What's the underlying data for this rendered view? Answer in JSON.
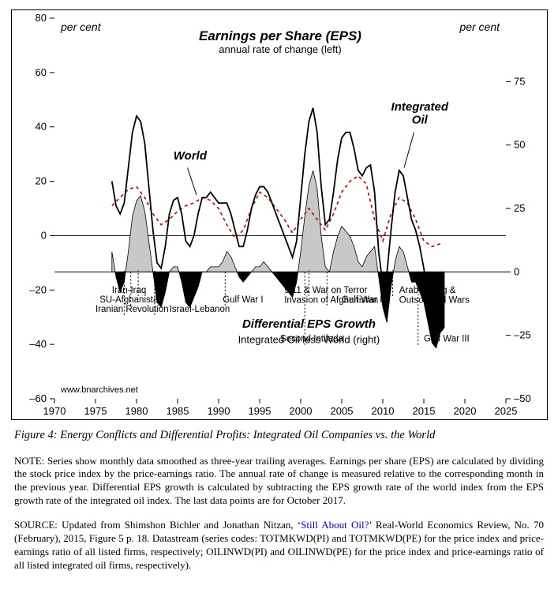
{
  "figure": {
    "caption": "Figure 4: Energy Conflicts and Differential Profits: Integrated Oil Companies vs. the World",
    "note_label": "NOTE:",
    "note_text": " Series show monthly data smoothed as three-year trailing averages. Earnings per share (EPS) are calculated by dividing the stock price index by the price-earnings ratio. The annual rate of change is measured relative to the corresponding month in the previous year. Differential EPS growth is calculated by subtracting the EPS growth rate of the world index from the EPS growth rate of the integrated oil index. The last data points are for October 2017.",
    "source_label": "SOURCE:",
    "source_pre": " Updated from Shimshon Bichler and Jonathan Nitzan, ‘",
    "source_link": "Still About Oil?",
    "source_post": "’ Real-World Economics Review, No. 70 (February), 2015, Figure 5 p. 18. Datastream (series codes: TOTMKWD(PI) and TOTMKWD(PE) for the price index and price-earnings ratio of all listed firms, respectively; OILINWD(PI) and OILINWD(PE) for the price index and price-earnings ratio of all listed integrated oil firms, respectively)."
  },
  "chart": {
    "background_color": "#ffffff",
    "border_color": "#000000",
    "xlim": [
      1970,
      2025
    ],
    "xtick_step": 5,
    "left_axis": {
      "ylim": [
        -60,
        80
      ],
      "ytick_step": 20,
      "unit": "per cent"
    },
    "right_axis": {
      "ylim": [
        -50,
        100
      ],
      "ytick_step": 25,
      "unit": "per cent",
      "visible_range": [
        -50,
        75
      ]
    },
    "zero_line_color": "#000000",
    "titles": {
      "main": "Earnings per Share (EPS)",
      "sub": "annual rate of change (left)",
      "diff_main": "Differential EPS Growth",
      "diff_sub": "Integrated Oil less World (right)"
    },
    "labels": {
      "world": "World",
      "integrated": "Integrated\nOil",
      "watermark": "www.bnarchives.net"
    },
    "series": {
      "world": {
        "color": "#c00000",
        "dash": "4,4",
        "width": 1.6,
        "points": [
          [
            1977,
            11
          ],
          [
            1978,
            14
          ],
          [
            1979,
            17
          ],
          [
            1980,
            18
          ],
          [
            1981,
            14
          ],
          [
            1982,
            8
          ],
          [
            1983,
            4
          ],
          [
            1984,
            6
          ],
          [
            1985,
            9
          ],
          [
            1986,
            11
          ],
          [
            1987,
            12
          ],
          [
            1988,
            14
          ],
          [
            1989,
            13
          ],
          [
            1990,
            10
          ],
          [
            1991,
            4
          ],
          [
            1992,
            -1
          ],
          [
            1993,
            2
          ],
          [
            1994,
            10
          ],
          [
            1995,
            16
          ],
          [
            1996,
            14
          ],
          [
            1997,
            10
          ],
          [
            1998,
            6
          ],
          [
            1999,
            1
          ],
          [
            2000,
            6
          ],
          [
            2001,
            10
          ],
          [
            2002,
            6
          ],
          [
            2003,
            2
          ],
          [
            2004,
            8
          ],
          [
            2005,
            16
          ],
          [
            2006,
            20
          ],
          [
            2007,
            22
          ],
          [
            2008,
            19
          ],
          [
            2009,
            6
          ],
          [
            2010,
            -2
          ],
          [
            2011,
            8
          ],
          [
            2012,
            14
          ],
          [
            2013,
            12
          ],
          [
            2014,
            6
          ],
          [
            2015,
            -2
          ],
          [
            2016,
            -4
          ],
          [
            2017,
            -3
          ]
        ]
      },
      "integrated_oil": {
        "color": "#000000",
        "width": 1.8,
        "points": [
          [
            1977,
            20
          ],
          [
            1977.5,
            11
          ],
          [
            1978,
            8
          ],
          [
            1978.5,
            12
          ],
          [
            1979,
            25
          ],
          [
            1979.5,
            38
          ],
          [
            1980,
            44
          ],
          [
            1980.5,
            42
          ],
          [
            1981,
            34
          ],
          [
            1981.5,
            18
          ],
          [
            1982,
            2
          ],
          [
            1982.5,
            -10
          ],
          [
            1983,
            -12
          ],
          [
            1983.5,
            -4
          ],
          [
            1984,
            8
          ],
          [
            1984.5,
            13
          ],
          [
            1985,
            14
          ],
          [
            1985.5,
            8
          ],
          [
            1986,
            -2
          ],
          [
            1986.5,
            -4
          ],
          [
            1987,
            0
          ],
          [
            1987.5,
            8
          ],
          [
            1988,
            14
          ],
          [
            1988.5,
            14
          ],
          [
            1989,
            16
          ],
          [
            1989.5,
            14
          ],
          [
            1990,
            12
          ],
          [
            1990.5,
            12
          ],
          [
            1991,
            12
          ],
          [
            1991.5,
            8
          ],
          [
            1992,
            2
          ],
          [
            1992.5,
            -4
          ],
          [
            1993,
            -4
          ],
          [
            1993.5,
            2
          ],
          [
            1994,
            10
          ],
          [
            1994.5,
            15
          ],
          [
            1995,
            18
          ],
          [
            1995.5,
            18
          ],
          [
            1996,
            16
          ],
          [
            1996.5,
            12
          ],
          [
            1997,
            8
          ],
          [
            1997.5,
            4
          ],
          [
            1998,
            0
          ],
          [
            1998.5,
            -4
          ],
          [
            1999,
            -8
          ],
          [
            1999.5,
            -2
          ],
          [
            2000,
            14
          ],
          [
            2000.5,
            30
          ],
          [
            2001,
            42
          ],
          [
            2001.5,
            47
          ],
          [
            2002,
            38
          ],
          [
            2002.5,
            18
          ],
          [
            2003,
            4
          ],
          [
            2003.5,
            6
          ],
          [
            2004,
            16
          ],
          [
            2004.5,
            28
          ],
          [
            2005,
            36
          ],
          [
            2005.5,
            38
          ],
          [
            2006,
            38
          ],
          [
            2006.5,
            32
          ],
          [
            2007,
            24
          ],
          [
            2007.5,
            22
          ],
          [
            2008,
            25
          ],
          [
            2008.5,
            26
          ],
          [
            2009,
            16
          ],
          [
            2009.5,
            -6
          ],
          [
            2010,
            -18
          ],
          [
            2010.5,
            -14
          ],
          [
            2011,
            2
          ],
          [
            2011.5,
            16
          ],
          [
            2012,
            24
          ],
          [
            2012.5,
            22
          ],
          [
            2013,
            14
          ],
          [
            2013.5,
            6
          ],
          [
            2014,
            2
          ],
          [
            2014.5,
            -4
          ],
          [
            2015,
            -12
          ],
          [
            2015.5,
            -22
          ],
          [
            2016,
            -30
          ],
          [
            2016.5,
            -32
          ],
          [
            2017,
            -26
          ],
          [
            2017.5,
            -24
          ]
        ]
      },
      "differential": {
        "pos_fill": "#c8c8c8",
        "neg_fill": "#000000",
        "stroke": "#000000",
        "stroke_width": 0.8,
        "points": [
          [
            1977,
            8
          ],
          [
            1977.5,
            -2
          ],
          [
            1978,
            -8
          ],
          [
            1978.5,
            -4
          ],
          [
            1979,
            8
          ],
          [
            1979.5,
            22
          ],
          [
            1980,
            28
          ],
          [
            1980.5,
            30
          ],
          [
            1981,
            24
          ],
          [
            1981.5,
            12
          ],
          [
            1982,
            0
          ],
          [
            1982.5,
            -12
          ],
          [
            1983,
            -14
          ],
          [
            1983.5,
            -8
          ],
          [
            1984,
            0
          ],
          [
            1984.5,
            2
          ],
          [
            1985,
            2
          ],
          [
            1985.5,
            -4
          ],
          [
            1986,
            -12
          ],
          [
            1986.5,
            -14
          ],
          [
            1987,
            -10
          ],
          [
            1987.5,
            -6
          ],
          [
            1988,
            0
          ],
          [
            1988.5,
            0
          ],
          [
            1989,
            2
          ],
          [
            1989.5,
            2
          ],
          [
            1990,
            2
          ],
          [
            1990.5,
            4
          ],
          [
            1991,
            8
          ],
          [
            1991.5,
            6
          ],
          [
            1992,
            2
          ],
          [
            1992.5,
            -2
          ],
          [
            1993,
            -4
          ],
          [
            1993.5,
            -2
          ],
          [
            1994,
            0
          ],
          [
            1994.5,
            2
          ],
          [
            1995,
            2
          ],
          [
            1995.5,
            4
          ],
          [
            1996,
            2
          ],
          [
            1996.5,
            0
          ],
          [
            1997,
            -2
          ],
          [
            1997.5,
            -4
          ],
          [
            1998,
            -6
          ],
          [
            1998.5,
            -8
          ],
          [
            1999,
            -10
          ],
          [
            1999.5,
            -4
          ],
          [
            2000,
            8
          ],
          [
            2000.5,
            22
          ],
          [
            2001,
            34
          ],
          [
            2001.5,
            40
          ],
          [
            2002,
            33
          ],
          [
            2002.5,
            14
          ],
          [
            2003,
            2
          ],
          [
            2003.5,
            0
          ],
          [
            2004,
            8
          ],
          [
            2004.5,
            14
          ],
          [
            2005,
            18
          ],
          [
            2005.5,
            16
          ],
          [
            2006,
            14
          ],
          [
            2006.5,
            10
          ],
          [
            2007,
            4
          ],
          [
            2007.5,
            2
          ],
          [
            2008,
            6
          ],
          [
            2008.5,
            8
          ],
          [
            2009,
            10
          ],
          [
            2009.5,
            -2
          ],
          [
            2010,
            -14
          ],
          [
            2010.5,
            -20
          ],
          [
            2011,
            -6
          ],
          [
            2011.5,
            4
          ],
          [
            2012,
            10
          ],
          [
            2012.5,
            8
          ],
          [
            2013,
            2
          ],
          [
            2013.5,
            -4
          ],
          [
            2014,
            -4
          ],
          [
            2014.5,
            -8
          ],
          [
            2015,
            -12
          ],
          [
            2015.5,
            -20
          ],
          [
            2016,
            -28
          ],
          [
            2016.5,
            -30
          ],
          [
            2017,
            -24
          ],
          [
            2017.5,
            -22
          ]
        ]
      }
    },
    "events": [
      {
        "label": "Iranian Revolution",
        "x": 1975.0,
        "line_to": 1978.5
      },
      {
        "label": "SU-Afghanistan",
        "x": 1975.5,
        "line_to": 1979.3
      },
      {
        "label": "Iran-Iraq",
        "x": 1977.0,
        "line_to": 1980.2
      },
      {
        "label": "Israel-Lebanon",
        "x": 1984.0,
        "line_to": 1982.2
      },
      {
        "label": "Gulf War I",
        "x": 1990.5,
        "line_to": 1990.8
      },
      {
        "label": "9/11 & War on Terror\nInvasion of Afghanistan",
        "x": 1998.0,
        "line_to": 2001.0
      },
      {
        "label": "Second Intifada",
        "x": 1997.5,
        "line_to": 2000.5,
        "lower": true
      },
      {
        "label": "Gulf War II",
        "x": 2005.0,
        "line_to": 2003.2
      },
      {
        "label": "Arab Spring &\nOutsourced Wars",
        "x": 2012.0,
        "line_to": 2011.2
      },
      {
        "label": "Gulf War III",
        "x": 2015.0,
        "line_to": 2014.3,
        "lower": true
      }
    ]
  }
}
